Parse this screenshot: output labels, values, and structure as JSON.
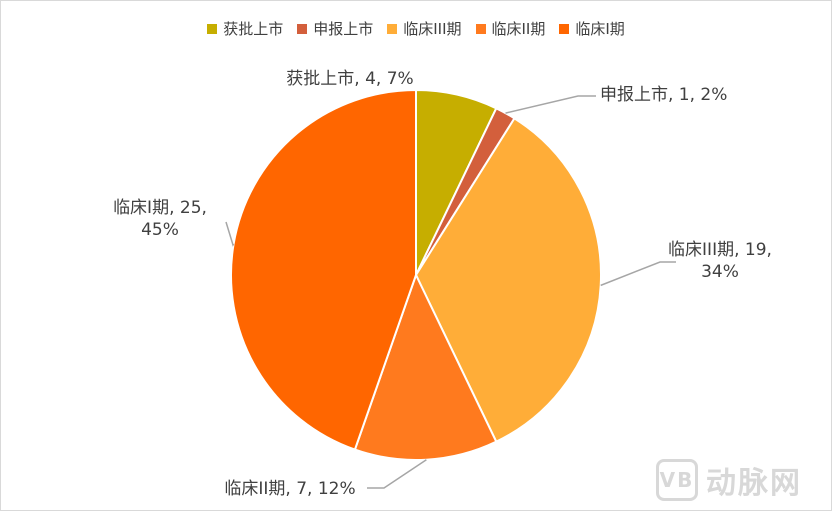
{
  "chart_data": {
    "type": "pie",
    "title": "",
    "categories": [
      "获批上市",
      "申报上市",
      "临床III期",
      "临床II期",
      "临床I期"
    ],
    "values": [
      4,
      1,
      19,
      7,
      25
    ],
    "percents": [
      "7%",
      "2%",
      "34%",
      "12%",
      "45%"
    ],
    "colors": [
      "#c6ae00",
      "#d35f3c",
      "#ffad38",
      "#ff7a1e",
      "#ff6600"
    ],
    "legend_position": "top",
    "data_labels": [
      {
        "line1": "获批上市, 4, 7%",
        "line2": ""
      },
      {
        "line1": "申报上市, 1, 2%",
        "line2": ""
      },
      {
        "line1": "临床III期, 19,",
        "line2": "34%"
      },
      {
        "line1": "临床II期, 7, 12%",
        "line2": ""
      },
      {
        "line1": "临床I期, 25,",
        "line2": "45%"
      }
    ]
  },
  "watermark": {
    "logo": "VB",
    "text": "动脉网"
  }
}
